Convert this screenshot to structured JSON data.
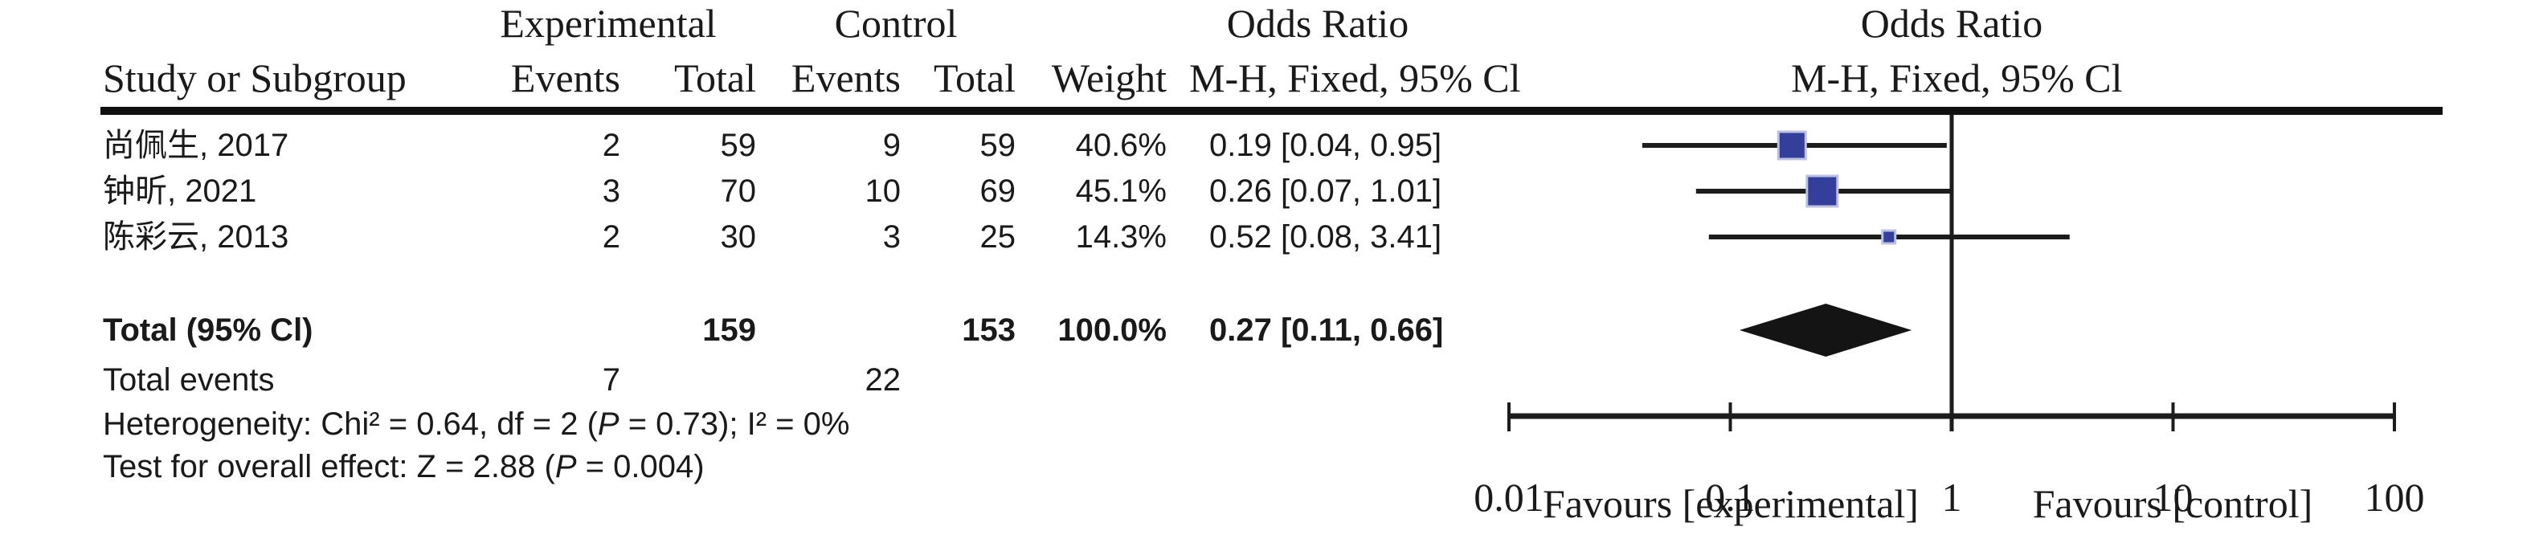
{
  "figure": {
    "group_headers": {
      "experimental": "Experimental",
      "control": "Control",
      "odds_ratio_left": "Odds Ratio",
      "odds_ratio_right": "Odds Ratio"
    },
    "column_headers": {
      "study": "Study or Subgroup",
      "events_exp": "Events",
      "total_exp": "Total",
      "events_ctrl": "Events",
      "total_ctrl": "Total",
      "weight": "Weight",
      "mh_left": "M-H, Fixed, 95% Cl",
      "mh_right": "M-H, Fixed, 95% Cl"
    },
    "studies": [
      {
        "study": "尚佩生, 2017",
        "events_exp": "2",
        "total_exp": "59",
        "events_ctrl": "9",
        "total_ctrl": "59",
        "weight": "40.6%",
        "or_ci": "0.19 [0.04, 0.95]"
      },
      {
        "study": "钟昕, 2021",
        "events_exp": "3",
        "total_exp": "70",
        "events_ctrl": "10",
        "total_ctrl": "69",
        "weight": "45.1%",
        "or_ci": "0.26 [0.07, 1.01]"
      },
      {
        "study": "陈彩云, 2013",
        "events_exp": "2",
        "total_exp": "30",
        "events_ctrl": "3",
        "total_ctrl": "25",
        "weight": "14.3%",
        "or_ci": "0.52 [0.08, 3.41]"
      }
    ],
    "total": {
      "label": "Total (95% Cl)",
      "total_exp": "159",
      "total_ctrl": "153",
      "weight": "100.0%",
      "or_ci": "0.27 [0.11, 0.66]"
    },
    "total_events": {
      "label": "Total events",
      "exp": "7",
      "ctrl": "22"
    },
    "footnotes": {
      "heterogeneity": "Heterogeneity: Chi² = 0.64, df = 2 (P = 0.73); I² = 0%",
      "overall_effect": "Test for overall effect: Z = 2.88 (P = 0.004)"
    },
    "axis": {
      "tick_labels": [
        "0.01",
        "0.1",
        "1",
        "10",
        "100"
      ],
      "favours_left": "Favours [experimental]",
      "favours_right": "Favours [control]"
    },
    "colors": {
      "marker": "#333F9B",
      "marker_border": "#BCC0E2",
      "diamond": "#141414",
      "line": "#1C1C1C",
      "text": "#1A1A1A"
    }
  },
  "chart_data": {
    "type": "scatter",
    "subtype": "forest-plot",
    "effect_measure": "Odds Ratio, M-H, Fixed, 95% CI",
    "x_scale": "log10",
    "xlim": [
      0.01,
      100
    ],
    "x_ticks": [
      0.01,
      0.1,
      1,
      10,
      100
    ],
    "reference_line": 1,
    "studies": [
      {
        "name": "尚佩生, 2017",
        "or": 0.19,
        "ci_low": 0.04,
        "ci_high": 0.95,
        "weight_pct": 40.6
      },
      {
        "name": "钟昕, 2021",
        "or": 0.26,
        "ci_low": 0.07,
        "ci_high": 1.01,
        "weight_pct": 45.1
      },
      {
        "name": "陈彩云, 2013",
        "or": 0.52,
        "ci_low": 0.08,
        "ci_high": 3.41,
        "weight_pct": 14.3
      }
    ],
    "total": {
      "or": 0.27,
      "ci_low": 0.11,
      "ci_high": 0.66,
      "weight_pct": 100.0
    },
    "heterogeneity": {
      "chi2": 0.64,
      "df": 2,
      "p": 0.73,
      "i2_pct": 0
    },
    "overall_effect": {
      "z": 2.88,
      "p": 0.004
    },
    "favours": [
      "Favours [experimental]",
      "Favours [control]"
    ],
    "grid": false,
    "legend": false
  }
}
